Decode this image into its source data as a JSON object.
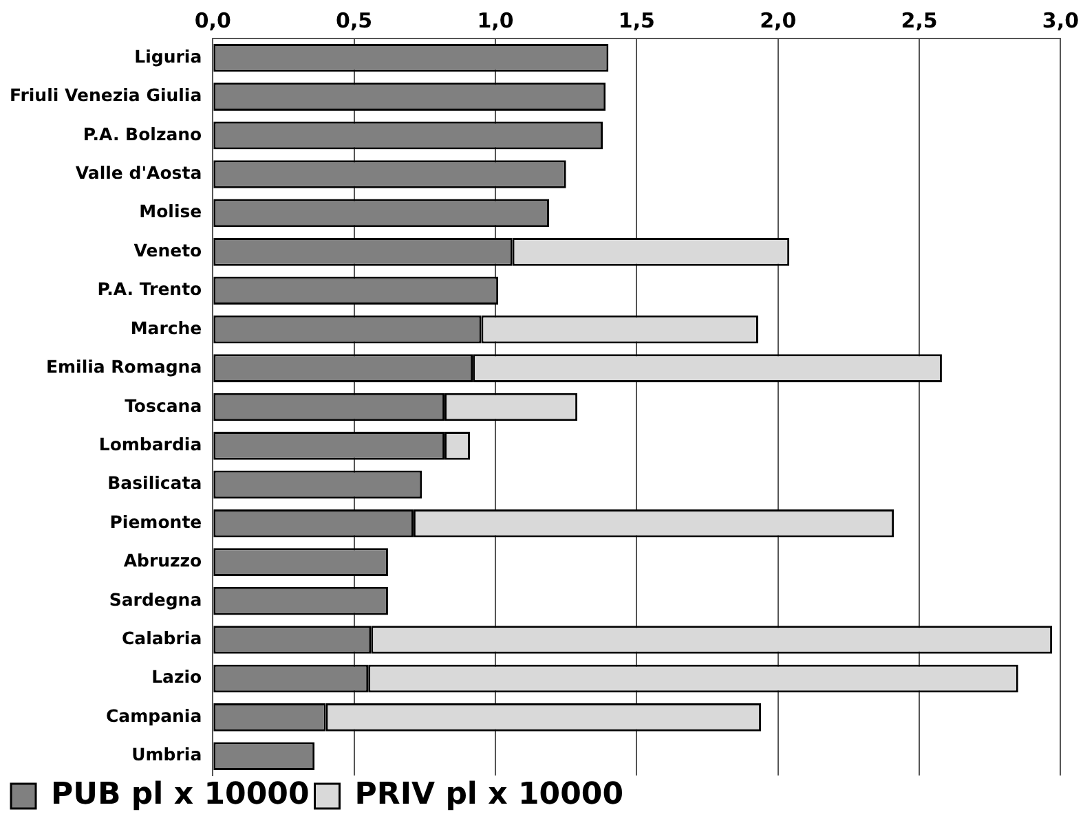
{
  "chart_data": {
    "type": "bar",
    "orientation": "horizontal",
    "stacked": true,
    "categories": [
      "Liguria",
      "Friuli Venezia Giulia",
      "P.A. Bolzano",
      "Valle d'Aosta",
      "Molise",
      "Veneto",
      "P.A. Trento",
      "Marche",
      "Emilia Romagna",
      "Toscana",
      "Lombardia",
      "Basilicata",
      "Piemonte",
      "Abruzzo",
      "Sardegna",
      "Calabria",
      "Lazio",
      "Campania",
      "Umbria"
    ],
    "series": [
      {
        "name": "PUB pl x 10000",
        "color": "#808080",
        "values": [
          1.4,
          1.39,
          1.38,
          1.25,
          1.19,
          1.06,
          1.01,
          0.95,
          0.92,
          0.82,
          0.82,
          0.74,
          0.71,
          0.62,
          0.62,
          0.56,
          0.55,
          0.4,
          0.36
        ]
      },
      {
        "name": "PRIV pl x 10000",
        "color": "#d9d9d9",
        "values": [
          null,
          null,
          null,
          null,
          null,
          0.98,
          null,
          0.98,
          1.66,
          0.47,
          0.09,
          null,
          1.7,
          null,
          null,
          2.41,
          2.3,
          1.54,
          null
        ]
      }
    ],
    "xlim": [
      0,
      3
    ],
    "xticks": [
      {
        "value": 0,
        "label": "0,0"
      },
      {
        "value": 0.5,
        "label": "0,5"
      },
      {
        "value": 1,
        "label": "1,0"
      },
      {
        "value": 1.5,
        "label": "1,5"
      },
      {
        "value": 2,
        "label": "2,0"
      },
      {
        "value": 2.5,
        "label": "2,5"
      },
      {
        "value": 3,
        "label": "3,0"
      }
    ],
    "grid": "x",
    "legend": "bottom"
  }
}
